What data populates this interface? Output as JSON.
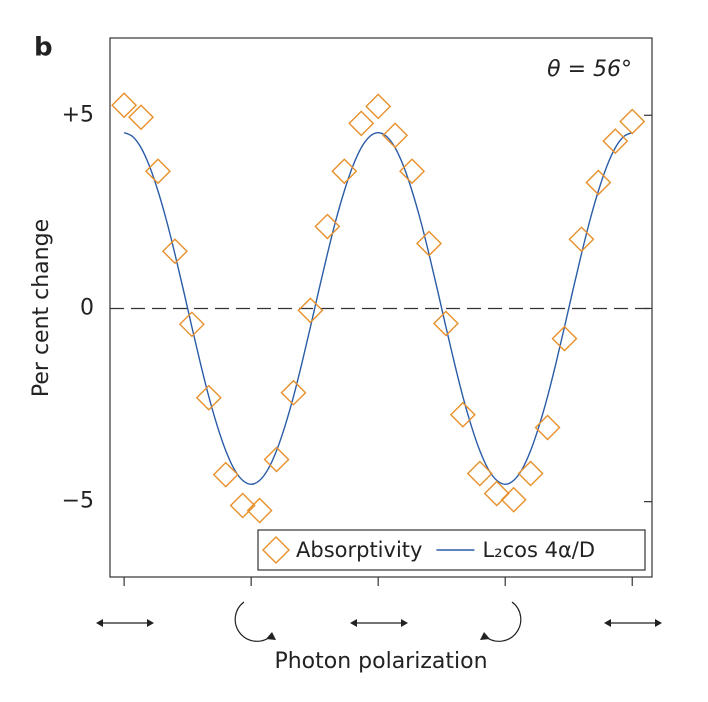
{
  "chart_data": {
    "type": "scatter-line",
    "panel_label": "b",
    "annotation": "θ = 56°",
    "ylabel": "Per cent change",
    "xlabel": "Photon polarization",
    "xlim": [
      -5,
      187
    ],
    "xticks": [
      0,
      45,
      90,
      135,
      180
    ],
    "ylim": [
      -6.95,
      7.0
    ],
    "yticks": [
      {
        "value": 5,
        "label": "+5"
      },
      0,
      {
        "value": -5,
        "label": "−5"
      }
    ],
    "zero_line": true,
    "legend": "lower right",
    "series": [
      {
        "name": "Absorptivity",
        "kind": "markers",
        "color": "#e8902a",
        "x": [
          0,
          6,
          12,
          18,
          24,
          30,
          36,
          42,
          48,
          54,
          60,
          66,
          72,
          78,
          84,
          90,
          96,
          102,
          108,
          114,
          120,
          126,
          132,
          138,
          144,
          150,
          156,
          162,
          168,
          174,
          180
        ],
        "values": [
          5.26,
          4.95,
          3.55,
          1.48,
          -0.41,
          -2.31,
          -4.3,
          -5.1,
          -5.23,
          -3.91,
          -2.18,
          -0.05,
          2.12,
          3.55,
          4.79,
          5.23,
          4.48,
          3.55,
          1.68,
          -0.39,
          -2.75,
          -4.27,
          -4.79,
          -4.95,
          -4.27,
          -3.08,
          -0.78,
          1.79,
          3.26,
          4.33,
          4.84
        ]
      },
      {
        "name": "L₂cos 4α/D",
        "kind": "line",
        "color": "#2a5ca8",
        "x": [
          0,
          3,
          6,
          9,
          12,
          15,
          18,
          21,
          24,
          27,
          30,
          33,
          36,
          39,
          42,
          45,
          48,
          51,
          54,
          57,
          60,
          63,
          66,
          69,
          72,
          75,
          78,
          81,
          84,
          87,
          90,
          93,
          96,
          99,
          102,
          105,
          108,
          111,
          114,
          117,
          120,
          123,
          126,
          129,
          132,
          135,
          138,
          141,
          144,
          147,
          150,
          153,
          156,
          159,
          162,
          165,
          168,
          171,
          174,
          177,
          180
        ],
        "values": [
          4.55,
          4.45,
          4.16,
          3.68,
          3.04,
          2.28,
          1.41,
          0.48,
          -0.48,
          -1.41,
          -2.28,
          -3.04,
          -3.68,
          -4.16,
          -4.45,
          -4.55,
          -4.45,
          -4.16,
          -3.68,
          -3.04,
          -2.28,
          -1.41,
          -0.48,
          0.48,
          1.41,
          2.28,
          3.04,
          3.68,
          4.16,
          4.45,
          4.55,
          4.45,
          4.16,
          3.68,
          3.04,
          2.28,
          1.41,
          0.48,
          -0.48,
          -1.41,
          -2.28,
          -3.04,
          -3.68,
          -4.16,
          -4.45,
          -4.55,
          -4.45,
          -4.16,
          -3.68,
          -3.04,
          -2.28,
          -1.41,
          -0.48,
          0.48,
          1.41,
          2.28,
          3.04,
          3.68,
          4.16,
          4.45,
          4.55
        ]
      }
    ]
  }
}
